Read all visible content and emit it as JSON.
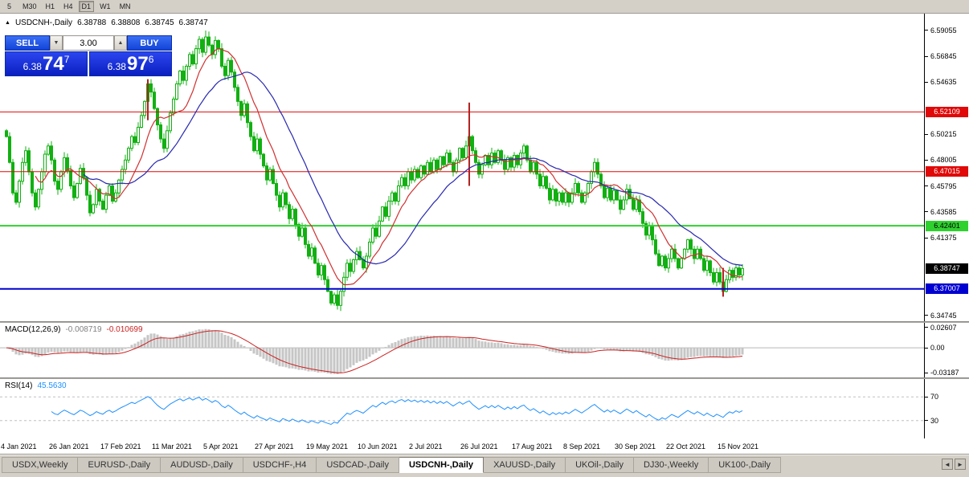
{
  "toolbar": {
    "timeframes": [
      "5",
      "M30",
      "H1",
      "H4",
      "D1",
      "W1",
      "MN"
    ],
    "active": "D1"
  },
  "chart_header": {
    "marker": "▲",
    "symbol": "USDCNH-,Daily",
    "open": "6.38788",
    "high": "6.38808",
    "low": "6.38745",
    "close": "6.38747"
  },
  "trade_panel": {
    "sell_label": "SELL",
    "buy_label": "BUY",
    "volume": "3.00",
    "spinner_up": "▲",
    "spinner_down": "▼",
    "sell_price": {
      "prefix": "6.38",
      "big": "74",
      "sup": "7"
    },
    "buy_price": {
      "prefix": "6.38",
      "big": "97",
      "sup": "6"
    }
  },
  "price_axis": {
    "ticks": [
      "6.59055",
      "6.56845",
      "6.54635",
      "6.50215",
      "6.48005",
      "6.45795",
      "6.43585",
      "6.41375",
      "6.34745"
    ]
  },
  "levels": [
    {
      "price": 6.52109,
      "label": "6.52109",
      "color": "#e00808",
      "text_color": "#ffffff",
      "width": 1
    },
    {
      "price": 6.47015,
      "label": "6.47015",
      "color": "#e00808",
      "text_color": "#ffffff",
      "width": 1
    },
    {
      "price": 6.42401,
      "label": "6.42401",
      "color": "#2fd12f",
      "text_color": "#000000",
      "width": 2
    },
    {
      "price": 6.37007,
      "label": "6.37007",
      "color": "#0000d0",
      "text_color": "#ffffff",
      "width": 2
    }
  ],
  "current_price": {
    "value": 6.38747,
    "label": "6.38747",
    "bg": "#000000",
    "fg": "#ffffff"
  },
  "macd": {
    "name": "MACD(12,26,9)",
    "value_main": "-0.008719",
    "value_signal": "-0.010699",
    "axis_labels": [
      {
        "v": 0.02607,
        "label": "0.02607"
      },
      {
        "v": 0.0,
        "label": "0.00"
      },
      {
        "v": -0.03187,
        "label": "-0.03187"
      }
    ]
  },
  "rsi": {
    "name": "RSI(14)",
    "value": "45.5630",
    "levels": [
      70,
      30
    ],
    "axis_labels": [
      {
        "v": 70,
        "label": "70"
      },
      {
        "v": 30,
        "label": "30"
      }
    ]
  },
  "time_axis": {
    "label_every": 16,
    "labels": [
      "4 Jan 2021",
      "26 Jan 2021",
      "17 Feb 2021",
      "11 Mar 2021",
      "5 Apr 2021",
      "27 Apr 2021",
      "19 May 2021",
      "10 Jun 2021",
      "2 Jul 2021",
      "26 Jul 2021",
      "17 Aug 2021",
      "8 Sep 2021",
      "30 Sep 2021",
      "22 Oct 2021",
      "15 Nov 2021"
    ]
  },
  "tabs": {
    "active": "USDCNH-,Daily",
    "items": [
      "USDX,Weekly",
      "EURUSD-,Daily",
      "AUDUSD-,Daily",
      "USDCHF-,H4",
      "USDCAD-,Daily",
      "USDCNH-,Daily",
      "XAUUSD-,Daily",
      "UKOil-,Daily",
      "DJ30-,Weekly",
      "UK100-,Daily"
    ]
  },
  "tab_scroll": {
    "left": "◄",
    "right": "►"
  },
  "chart_data": {
    "type": "candlestick",
    "symbol": "USDCNH",
    "timeframe": "Daily",
    "candle_color": "#12b012",
    "ylim": [
      6.34745,
      6.59055
    ],
    "last_price": 6.38747,
    "horizontal_levels": [
      6.52109,
      6.47015,
      6.42401,
      6.37007
    ],
    "first_open": 6.505,
    "closes": [
      6.5,
      6.478,
      6.452,
      6.444,
      6.462,
      6.478,
      6.488,
      6.47,
      6.452,
      6.44,
      6.455,
      6.47,
      6.485,
      6.492,
      6.48,
      6.462,
      6.455,
      6.47,
      6.482,
      6.471,
      6.458,
      6.448,
      6.46,
      6.473,
      6.465,
      6.45,
      6.435,
      6.442,
      6.455,
      6.445,
      6.438,
      6.45,
      6.458,
      6.445,
      6.452,
      6.463,
      6.472,
      6.48,
      6.49,
      6.5,
      6.495,
      6.508,
      6.518,
      6.53,
      6.545,
      6.538,
      6.524,
      6.51,
      6.498,
      6.49,
      6.505,
      6.52,
      6.532,
      6.545,
      6.556,
      6.548,
      6.56,
      6.57,
      6.562,
      6.575,
      6.583,
      6.572,
      6.585,
      6.578,
      6.57,
      6.582,
      6.575,
      6.56,
      6.552,
      6.565,
      6.555,
      6.542,
      6.53,
      6.518,
      6.528,
      6.512,
      6.5,
      6.488,
      6.498,
      6.485,
      6.475,
      6.463,
      6.472,
      6.46,
      6.45,
      6.44,
      6.452,
      6.442,
      6.43,
      6.438,
      6.425,
      6.415,
      6.422,
      6.408,
      6.398,
      6.405,
      6.392,
      6.382,
      6.39,
      6.378,
      6.368,
      6.358,
      6.365,
      6.356,
      6.368,
      6.38,
      6.392,
      6.385,
      6.395,
      6.402,
      6.395,
      6.388,
      6.398,
      6.41,
      6.422,
      6.415,
      6.428,
      6.44,
      6.432,
      6.445,
      6.452,
      6.445,
      6.458,
      6.465,
      6.458,
      6.47,
      6.463,
      6.472,
      6.465,
      6.475,
      6.468,
      6.478,
      6.47,
      6.48,
      6.472,
      6.483,
      6.476,
      6.486,
      6.478,
      6.47,
      6.48,
      6.49,
      6.482,
      6.492,
      6.5,
      6.488,
      6.478,
      6.468,
      6.476,
      6.484,
      6.476,
      6.486,
      6.478,
      6.488,
      6.48,
      6.472,
      6.482,
      6.474,
      6.484,
      6.476,
      6.486,
      6.492,
      6.48,
      6.47,
      6.478,
      6.468,
      6.458,
      6.466,
      6.456,
      6.446,
      6.455,
      6.445,
      6.452,
      6.444,
      6.452,
      6.444,
      6.452,
      6.46,
      6.452,
      6.444,
      6.452,
      6.46,
      6.47,
      6.478,
      6.468,
      6.458,
      6.448,
      6.456,
      6.446,
      6.454,
      6.446,
      6.438,
      6.446,
      6.455,
      6.447,
      6.438,
      6.446,
      6.436,
      6.426,
      6.416,
      6.424,
      6.412,
      6.4,
      6.39,
      6.398,
      6.388,
      6.396,
      6.404,
      6.396,
      6.388,
      6.396,
      6.404,
      6.412,
      6.404,
      6.396,
      6.404,
      6.396,
      6.386,
      6.394,
      6.384,
      6.376,
      6.384,
      6.376,
      6.368,
      6.378,
      6.386,
      6.38,
      6.388,
      6.382,
      6.38747
    ],
    "wick_overrides": {
      "62": {
        "high": 6.5905
      },
      "103": {
        "low": 6.3525
      },
      "144": {
        "high": 6.529
      },
      "223": {
        "low": 6.3635
      }
    },
    "special_marks": [
      {
        "index": 44,
        "from": 6.549,
        "to": 6.514,
        "color": "#b22222"
      },
      {
        "index": 144,
        "from": 6.529,
        "to": 6.458,
        "color": "#b22222"
      },
      {
        "index": 223,
        "from": 6.388,
        "to": 6.3635,
        "color": "#b22222"
      }
    ],
    "moving_averages": [
      {
        "period": 10,
        "color": "#d03030"
      },
      {
        "period": 25,
        "color": "#2828b0"
      }
    ],
    "indicators": [
      {
        "name": "MACD",
        "params": [
          12,
          26,
          9
        ],
        "last_values": [
          -0.008719,
          -0.010699
        ]
      },
      {
        "name": "RSI",
        "params": [
          14
        ],
        "last_value": 45.563
      }
    ],
    "x_labels": [
      "4 Jan 2021",
      "26 Jan 2021",
      "17 Feb 2021",
      "11 Mar 2021",
      "5 Apr 2021",
      "27 Apr 2021",
      "19 May 2021",
      "10 Jun 2021",
      "2 Jul 2021",
      "26 Jul 2021",
      "17 Aug 2021",
      "8 Sep 2021",
      "30 Sep 2021",
      "22 Oct 2021",
      "15 Nov 2021"
    ]
  }
}
